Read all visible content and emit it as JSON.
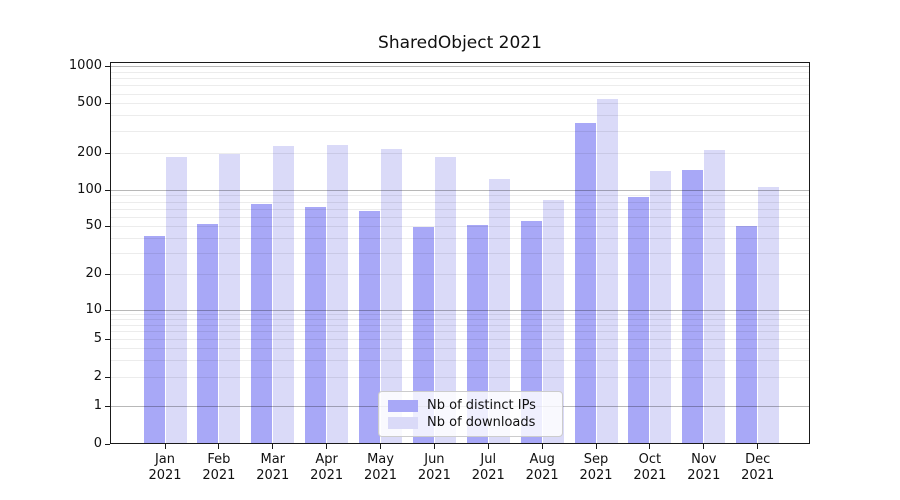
{
  "title": "SharedObject 2021",
  "chart_data": {
    "type": "bar",
    "title": "SharedObject 2021",
    "categories": [
      "Jan",
      "Feb",
      "Mar",
      "Apr",
      "May",
      "Jun",
      "Jul",
      "Aug",
      "Sep",
      "Oct",
      "Nov",
      "Dec"
    ],
    "category_year": "2021",
    "series": [
      {
        "name": "Nb of distinct IPs",
        "color": "#a8a8f7",
        "values": [
          41,
          52,
          77,
          72,
          67,
          49,
          51,
          55,
          345,
          87,
          144,
          50
        ]
      },
      {
        "name": "Nb of downloads",
        "color": "#dadaf8",
        "values": [
          185,
          196,
          225,
          232,
          213,
          183,
          123,
          82,
          540,
          143,
          210,
          105
        ]
      }
    ],
    "yticks": [
      0,
      1,
      2,
      5,
      10,
      20,
      50,
      100,
      200,
      500,
      1000
    ],
    "ylim": [
      0,
      1000
    ],
    "yscale": "symlog",
    "grid": true,
    "legend_position": "lower center"
  }
}
